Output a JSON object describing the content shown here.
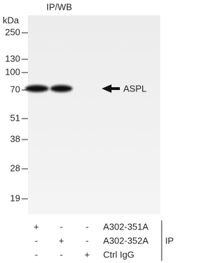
{
  "title": "IP/WB",
  "kda_label": "kDa",
  "markers": [
    "250",
    "130",
    "100",
    "70",
    "51",
    "38",
    "28",
    "19"
  ],
  "band_label": "ASPL",
  "table": {
    "rows": [
      {
        "cells": [
          "+",
          "-",
          "-"
        ],
        "label": "A302-351A"
      },
      {
        "cells": [
          "-",
          "+",
          "-"
        ],
        "label": "A302-352A"
      },
      {
        "cells": [
          "-",
          "-",
          "+"
        ],
        "label": "Ctrl IgG"
      }
    ],
    "group_label": "IP"
  }
}
